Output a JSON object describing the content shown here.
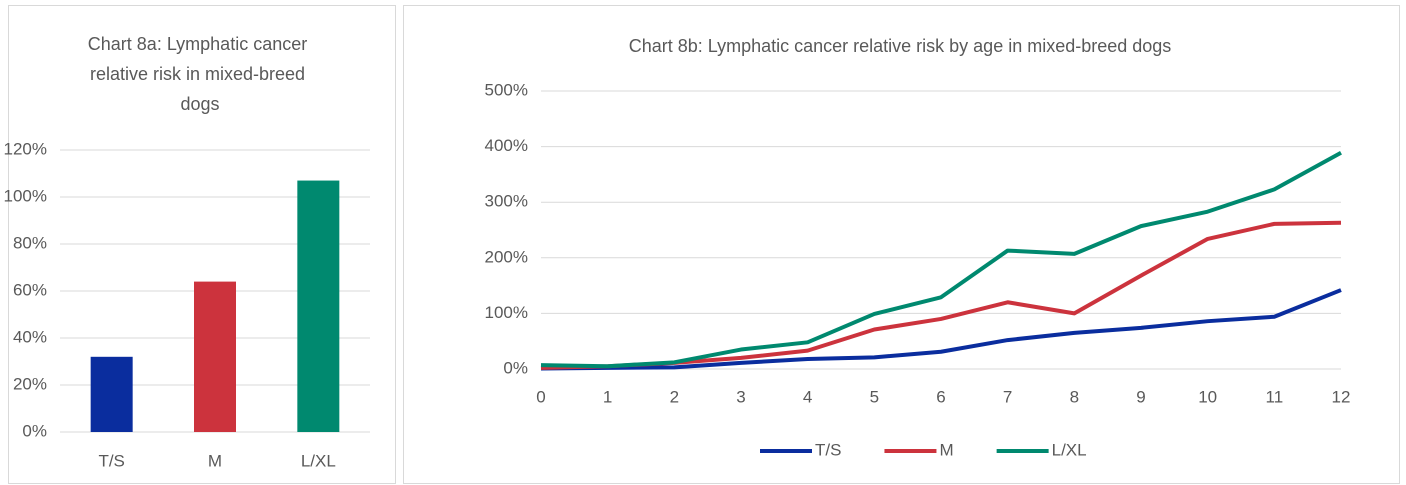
{
  "chart_data": [
    {
      "type": "bar",
      "title": "Chart 8a: Lymphatic cancer relative risk in mixed-breed dogs",
      "categories": [
        "T/S",
        "M",
        "L/XL"
      ],
      "values": [
        32,
        64,
        107
      ],
      "colors": [
        "#0a2d9e",
        "#cc333d",
        "#00896f"
      ],
      "ylim": [
        0,
        120
      ],
      "yticks": [
        {
          "value": 0,
          "label": "0%"
        },
        {
          "value": 20,
          "label": "20%"
        },
        {
          "value": 40,
          "label": "40%"
        },
        {
          "value": 60,
          "label": "60%"
        },
        {
          "value": 80,
          "label": "80%"
        },
        {
          "value": 100,
          "label": "100%"
        },
        {
          "value": 120,
          "label": "120%"
        }
      ],
      "grid": true
    },
    {
      "type": "line",
      "title": "Chart 8b: Lymphatic cancer relative risk by age in mixed-breed dogs",
      "x": [
        0,
        1,
        2,
        3,
        4,
        5,
        6,
        7,
        8,
        9,
        10,
        11,
        12
      ],
      "xlim": [
        0,
        12
      ],
      "xticks": [
        0,
        1,
        2,
        3,
        4,
        5,
        6,
        7,
        8,
        9,
        10,
        11,
        12
      ],
      "ylim": [
        0,
        500
      ],
      "yticks": [
        {
          "value": 0,
          "label": "0%"
        },
        {
          "value": 100,
          "label": "100%"
        },
        {
          "value": 200,
          "label": "200%"
        },
        {
          "value": 300,
          "label": "300%"
        },
        {
          "value": 400,
          "label": "400%"
        },
        {
          "value": 500,
          "label": "500%"
        }
      ],
      "grid": true,
      "legend": "bottom",
      "series": [
        {
          "name": "T/S",
          "color": "#0a2d9e",
          "values": [
            1,
            2,
            3,
            11,
            18,
            21,
            31,
            52,
            65,
            74,
            86,
            94,
            142
          ]
        },
        {
          "name": "M",
          "color": "#cc333d",
          "values": [
            2,
            5,
            11,
            20,
            33,
            71,
            90,
            120,
            100,
            168,
            234,
            261,
            263
          ]
        },
        {
          "name": "L/XL",
          "color": "#00896f",
          "values": [
            7,
            5,
            12,
            35,
            48,
            99,
            129,
            213,
            207,
            257,
            283,
            323,
            389
          ]
        }
      ]
    }
  ]
}
